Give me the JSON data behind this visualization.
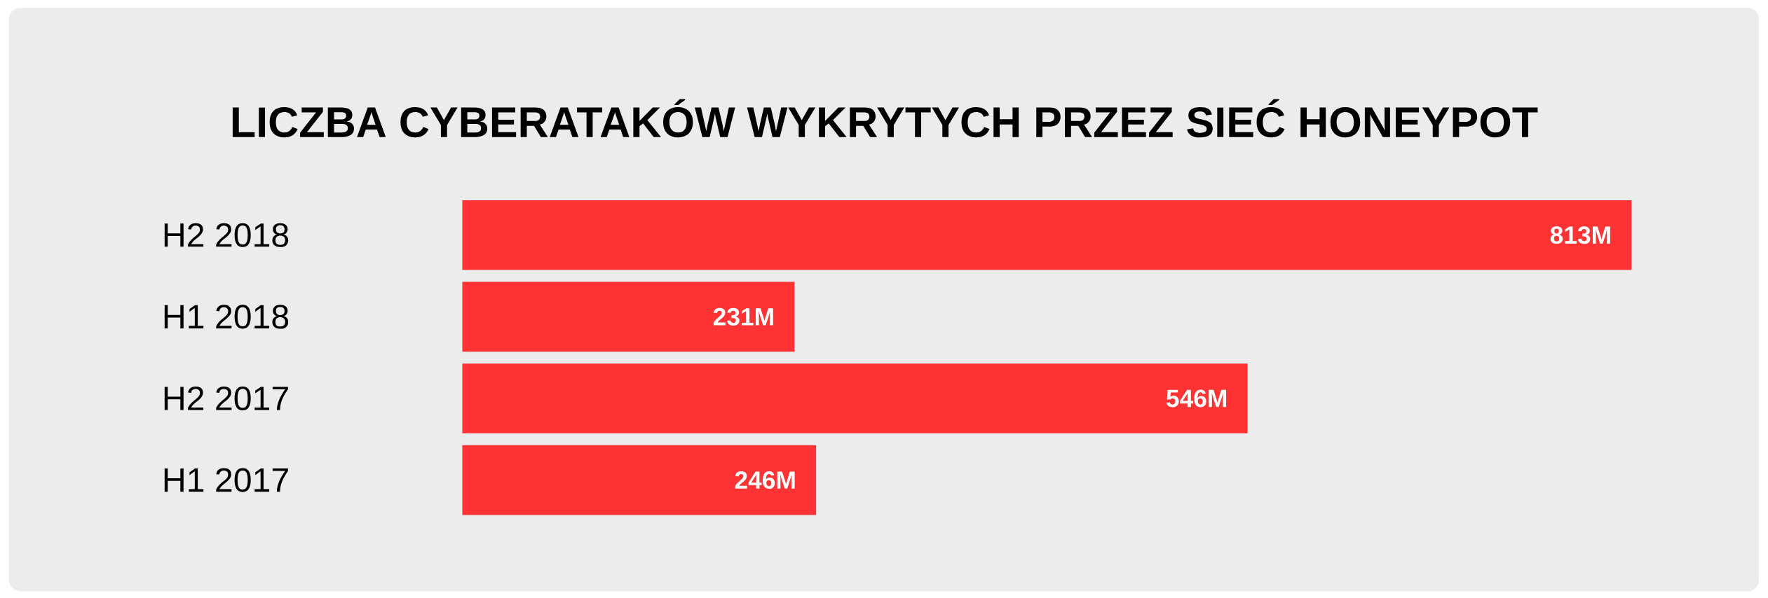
{
  "chart_data": {
    "type": "bar",
    "orientation": "horizontal",
    "title": "LICZBA CYBERATAKÓW WYKRYTYCH PRZEZ SIEĆ HONEYPOT",
    "categories": [
      "H2 2018",
      "H1 2018",
      "H2 2017",
      "H1 2017"
    ],
    "values": [
      813,
      231,
      546,
      246
    ],
    "value_labels": [
      "813M",
      "231M",
      "546M",
      "246M"
    ],
    "color": "#ff3333"
  }
}
